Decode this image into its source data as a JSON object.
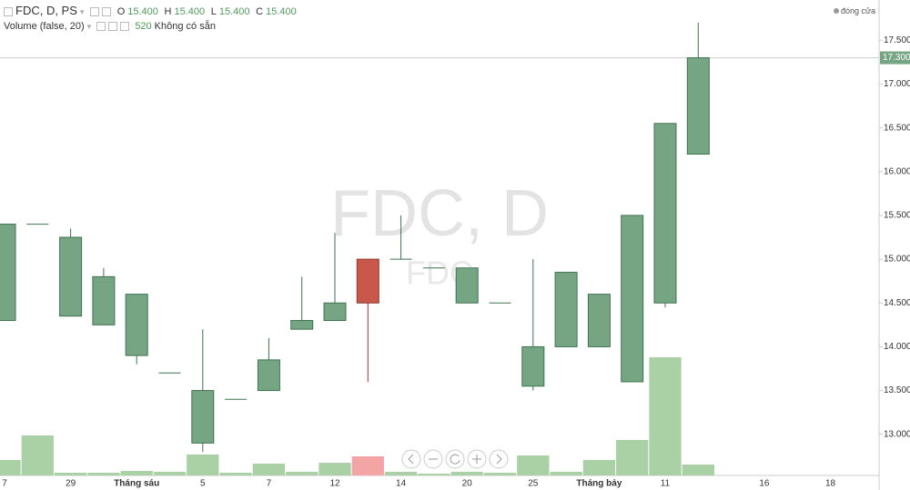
{
  "header": {
    "symbol": "FDC, D, PS",
    "o_label": "O",
    "o": "15.400",
    "h_label": "H",
    "h": "15.400",
    "l_label": "L",
    "l": "15.400",
    "c_label": "C",
    "c": "15.400",
    "volume_study": "Volume (false, 20)",
    "volume_value": "520",
    "volume_status": "Không có sẵn",
    "market_status": "đóng cửa"
  },
  "chart_data": {
    "type": "candlestick",
    "watermark": "FDC, D",
    "watermark_sub": "FDC",
    "categories": [
      "7",
      null,
      "29",
      null,
      "Tháng sáu",
      null,
      "5",
      null,
      "7",
      null,
      "12",
      null,
      "14",
      null,
      "20",
      null,
      "25",
      null,
      "Tháng bảy",
      null,
      "11",
      null,
      null,
      "16",
      null,
      "18",
      null
    ],
    "open": [
      14.3,
      15.4,
      14.35,
      14.25,
      13.9,
      13.7,
      12.9,
      13.4,
      13.5,
      14.2,
      14.3,
      15.0,
      15.0,
      14.9,
      14.5,
      14.5,
      13.55,
      14.0,
      14.0,
      13.6,
      14.5,
      16.2,
      null,
      null,
      null,
      null,
      null
    ],
    "high": [
      15.4,
      15.4,
      15.35,
      14.9,
      14.6,
      13.7,
      14.2,
      13.4,
      14.1,
      14.8,
      15.3,
      15.0,
      15.5,
      14.9,
      14.9,
      14.5,
      15.0,
      14.85,
      14.6,
      15.5,
      16.55,
      17.7,
      null,
      null,
      null,
      null,
      null
    ],
    "low": [
      14.3,
      15.4,
      14.35,
      14.25,
      13.8,
      13.7,
      12.8,
      13.4,
      13.5,
      14.2,
      14.3,
      13.6,
      15.0,
      14.9,
      14.5,
      14.5,
      13.5,
      14.0,
      14.0,
      13.6,
      14.45,
      16.2,
      null,
      null,
      null,
      null,
      null
    ],
    "close": [
      15.4,
      15.4,
      15.25,
      14.8,
      14.6,
      13.7,
      13.5,
      13.4,
      13.85,
      14.3,
      14.5,
      14.5,
      15.0,
      14.9,
      14.9,
      14.5,
      14.0,
      14.85,
      14.6,
      15.5,
      16.55,
      17.3,
      null,
      null,
      null,
      null,
      null
    ],
    "volume": [
      17,
      44,
      3,
      3,
      5,
      4,
      23,
      3,
      13,
      4,
      14,
      21,
      4,
      2,
      4,
      3,
      22,
      4,
      17,
      39,
      130,
      12,
      null,
      null,
      null,
      null,
      null
    ],
    "up_color": "#76a584",
    "up_border": "#3f7350",
    "down_color": "#c9574a",
    "down_border": "#8e3a30",
    "volume_up_color": "#aad0a6",
    "volume_down_color": "#f3a5a5",
    "ylim": [
      12.53,
      17.96
    ],
    "volume_ylim": [
      0,
      400
    ],
    "yticks": [
      {
        "value": 13.0,
        "label": "13.000"
      },
      {
        "value": 13.5,
        "label": "13.500"
      },
      {
        "value": 14.0,
        "label": "14.000"
      },
      {
        "value": 14.5,
        "label": "14.500"
      },
      {
        "value": 15.0,
        "label": "15.000"
      },
      {
        "value": 15.5,
        "label": "15.500"
      },
      {
        "value": 16.0,
        "label": "16.000"
      },
      {
        "value": 16.5,
        "label": "16.500"
      },
      {
        "value": 17.0,
        "label": "17.000"
      },
      {
        "value": 17.5,
        "label": "17.500"
      }
    ],
    "last_price": {
      "value": 17.3,
      "label": "17.300"
    }
  }
}
